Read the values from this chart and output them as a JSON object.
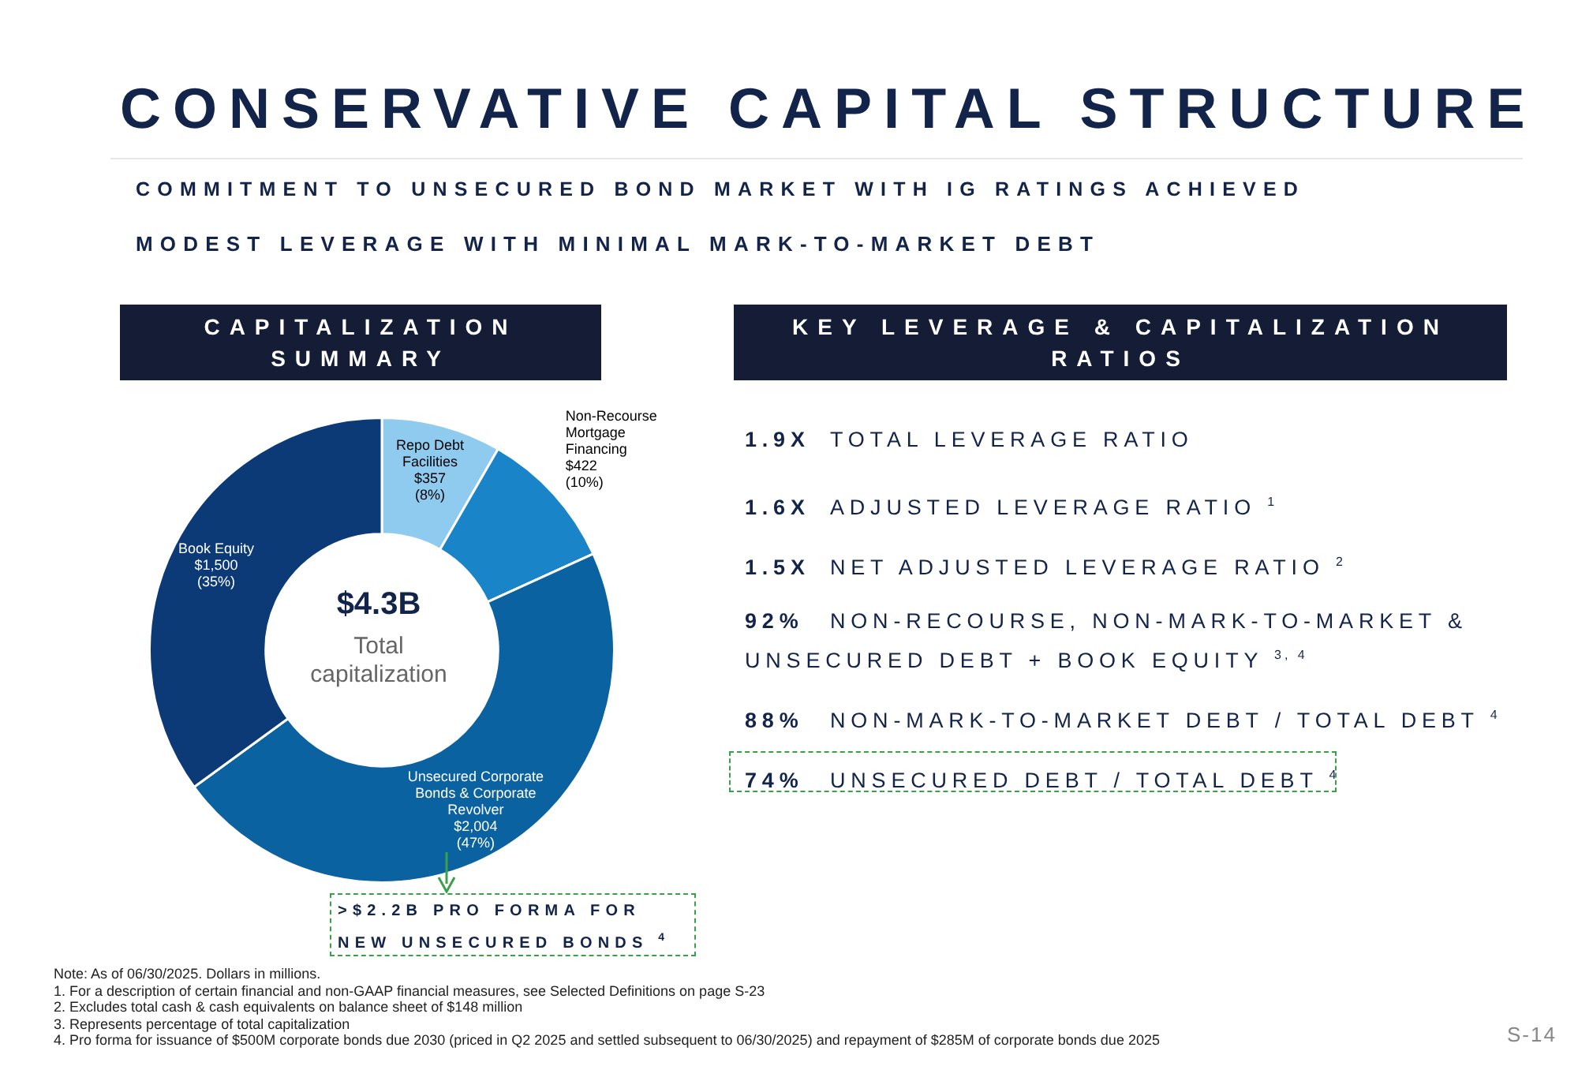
{
  "chart_data": {
    "type": "donut",
    "title": "CONSERVATIVE CAPITAL STRUCTURE",
    "subtitle": "COMMITMENT TO UNSECURED BOND MARKET WITH IG RATINGS ACHIEVED",
    "categories": [
      "Repo Debt Facilities",
      "Non-Recourse Mortgage Financing",
      "Unsecured Corporate Bonds & Corporate Revolver",
      "Book Equity"
    ],
    "values": [
      357,
      422,
      2004,
      1500
    ],
    "colors": [
      "#8fcbef",
      "#1a84c9",
      "#0b62a0",
      "#0c3a77"
    ],
    "value_labels": [
      "$357\n(8%)",
      "$422\n(10%)",
      "$2,004\n(47%)",
      "$1,500\n(35%)"
    ],
    "legend": false,
    "annotations": [
      "$4.3B",
      "Total capitalization",
      "MODEST LEVERAGE WITH MINIMAL MARK-TO-MARKET DEBT",
      "CAPITALIZATION SUMMARY",
      "KEY LEVERAGE & CAPITALIZATION RATIOS",
      "1.9X TOTAL LEVERAGE RATIO",
      "1.6X ADJUSTED LEVERAGE RATIO $^{1}$",
      "1.5X NET ADJUSTED LEVERAGE RATIO $^{2}$",
      "92% NON-RECOURSE, NON-MARK-TO-MARKET & UNSECURED DEBT + BOOK EQUITY $^{3, 4}$",
      "88% NON-MARK-TO-MARKET DEBT / TOTAL DEBT $^{4}$",
      "74% UNSECURED DEBT / TOTAL DEBT $^{4}$",
      ">$2.2B PRO FORMA FOR NEW UNSECURED BONDS $^{4}$",
      "Note: As of 06/30/2025. Dollars in millions.",
      "1. For a description of certain financial and non-GAAP financial measures, see Selected Definitions on page S-23",
      "2. Excludes total cash & cash equivalents on balance sheet of $148 million",
      "3. Represents percentage of total capitalization",
      "4. Pro forma for issuance of $500M corporate bonds due 2030 (priced in Q2 2025 and settled subsequent to 06/30/2025) and repayment of $285M of corporate bonds due 2025",
      "S-14"
    ]
  }
}
